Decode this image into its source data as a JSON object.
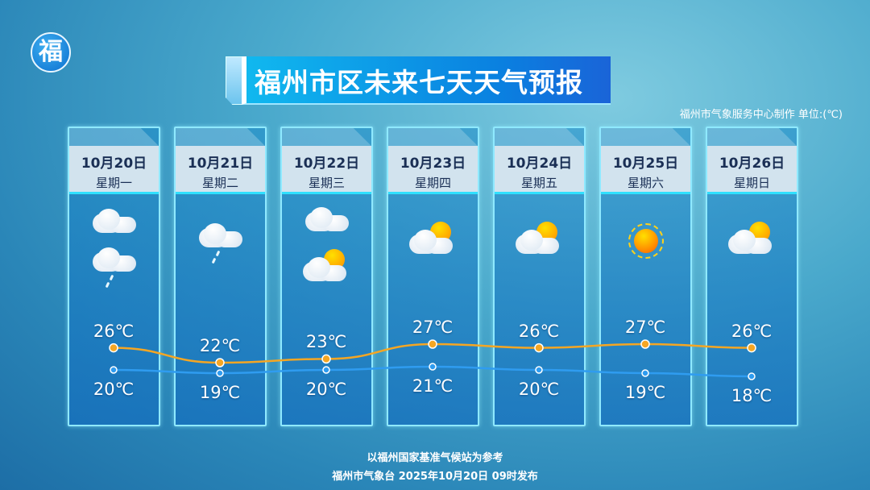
{
  "logo": {
    "text": "福"
  },
  "title": "福州市区未来七天天气预报",
  "credit": "福州市气象服务中心制作   单位:(℃)",
  "days": [
    {
      "date": "10月20日",
      "weekday": "星期一",
      "icon": "cloudy-to-light-rain",
      "high": "26℃",
      "low": "20℃"
    },
    {
      "date": "10月21日",
      "weekday": "星期二",
      "icon": "light-rain",
      "high": "22℃",
      "low": "19℃"
    },
    {
      "date": "10月22日",
      "weekday": "星期三",
      "icon": "cloudy-to-partly-cloudy",
      "high": "23℃",
      "low": "20℃"
    },
    {
      "date": "10月23日",
      "weekday": "星期四",
      "icon": "partly-cloudy",
      "high": "27℃",
      "low": "21℃"
    },
    {
      "date": "10月24日",
      "weekday": "星期五",
      "icon": "partly-cloudy",
      "high": "26℃",
      "low": "20℃"
    },
    {
      "date": "10月25日",
      "weekday": "星期六",
      "icon": "sunny",
      "high": "27℃",
      "low": "19℃"
    },
    {
      "date": "10月26日",
      "weekday": "星期日",
      "icon": "partly-cloudy",
      "high": "26℃",
      "low": "18℃"
    }
  ],
  "chart_data": {
    "type": "line",
    "categories": [
      "10月20日",
      "10月21日",
      "10月22日",
      "10月23日",
      "10月24日",
      "10月25日",
      "10月26日"
    ],
    "series": [
      {
        "values": [
          26,
          22,
          23,
          27,
          26,
          27,
          26
        ],
        "color": "#f5a623"
      },
      {
        "values": [
          20,
          19,
          20,
          21,
          20,
          19,
          18
        ],
        "color": "#2f9cf0"
      }
    ],
    "unit": "℃"
  },
  "footer": {
    "line1": "以福州国家基准气候站为参考",
    "line2": "福州市气象台 2025年10月20日 09时发布"
  }
}
